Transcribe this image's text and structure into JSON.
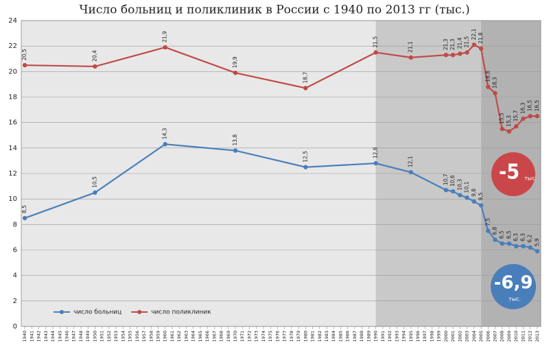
{
  "chart_data": {
    "type": "line",
    "title": "Число больниц и поликлиник в России с 1940 по 2013 гг (тыс.)",
    "x": [
      1940,
      1950,
      1960,
      1970,
      1980,
      1990,
      1995,
      2000,
      2001,
      2002,
      2003,
      2004,
      2005,
      2006,
      2007,
      2008,
      2009,
      2010,
      2011,
      2012,
      2013
    ],
    "series": [
      {
        "name": "число больниц",
        "color": "#4a7ebb",
        "values": [
          8.5,
          10.5,
          14.3,
          13.8,
          12.5,
          12.8,
          12.1,
          10.7,
          10.6,
          10.3,
          10.1,
          9.8,
          9.5,
          7.5,
          6.8,
          6.5,
          6.5,
          6.3,
          6.3,
          6.2,
          5.9
        ],
        "value_labels": [
          "8,5",
          "10,5",
          "14,3",
          "13,8",
          "12,5",
          "12,8",
          "12,1",
          "10,7",
          "10,6",
          "10,3",
          "10,1",
          "9,8",
          "9,5",
          "7,5",
          "6,8",
          "6,5",
          "6,5",
          "6,3",
          "6,3",
          "6,2",
          "5,9"
        ]
      },
      {
        "name": "число поликлиник",
        "color": "#be4b48",
        "values": [
          20.5,
          20.4,
          21.9,
          19.9,
          18.7,
          21.5,
          21.1,
          21.3,
          21.3,
          21.4,
          21.5,
          22.1,
          21.8,
          18.8,
          18.3,
          15.5,
          15.3,
          15.7,
          16.3,
          16.5,
          16.5
        ],
        "value_labels": [
          "20,5",
          "20,4",
          "21,9",
          "19,9",
          "18,7",
          "21,5",
          "21,1",
          "21,3",
          "21,3",
          "21,4",
          "21,5",
          "22,1",
          "21,8",
          "18,8",
          "18,3",
          "15,5",
          "15,3",
          "15,7",
          "16,3",
          "16,5",
          "16,5"
        ]
      }
    ],
    "xlim": [
      1939.5,
      2013.5
    ],
    "xticks": [
      1940,
      1941,
      1942,
      1943,
      1944,
      1945,
      1946,
      1947,
      1948,
      1949,
      1950,
      1951,
      1952,
      1953,
      1954,
      1955,
      1956,
      1957,
      1958,
      1959,
      1960,
      1961,
      1962,
      1963,
      1964,
      1965,
      1966,
      1967,
      1968,
      1969,
      1970,
      1971,
      1972,
      1973,
      1974,
      1975,
      1976,
      1977,
      1978,
      1979,
      1980,
      1981,
      1982,
      1983,
      1984,
      1985,
      1986,
      1987,
      1988,
      1989,
      1990,
      1991,
      1992,
      1993,
      1994,
      1995,
      1996,
      1997,
      1998,
      1999,
      2000,
      2001,
      2002,
      2003,
      2004,
      2005,
      2006,
      2007,
      2008,
      2009,
      2010,
      2011,
      2012,
      2013
    ],
    "ylim": [
      0,
      24
    ],
    "yticks": [
      0,
      2,
      4,
      6,
      8,
      10,
      12,
      14,
      16,
      18,
      20,
      22,
      24
    ],
    "grid": true,
    "legend": "lower left",
    "shading": {
      "breaks": [
        1990,
        2005
      ],
      "colors": [
        "#e8e8e8",
        "#c9c9c9",
        "#b2b2b2"
      ]
    },
    "annotations": [
      {
        "text": "-5",
        "unit": "тыс.",
        "color": "#c9474a"
      },
      {
        "text": "-6,9",
        "unit": "тыс.",
        "color": "#4a7ebb"
      }
    ]
  }
}
